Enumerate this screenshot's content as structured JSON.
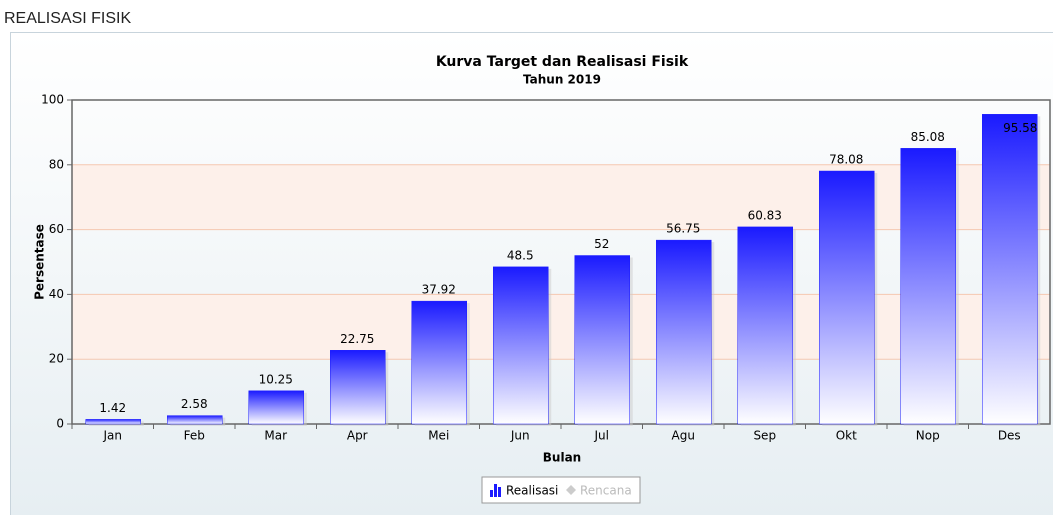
{
  "page_title": "REALISASI FISIK",
  "chart_data": {
    "type": "bar",
    "title": "Kurva Target dan Realisasi Fisik",
    "subtitle": "Tahun 2019",
    "x_label": "Bulan",
    "y_label": "Persentase",
    "categories": [
      "Jan",
      "Feb",
      "Mar",
      "Apr",
      "Mei",
      "Jun",
      "Jul",
      "Agu",
      "Sep",
      "Okt",
      "Nop",
      "Des"
    ],
    "series": [
      {
        "name": "Realisasi",
        "color": "#1a1aff",
        "values": [
          1.42,
          2.58,
          10.25,
          22.75,
          37.92,
          48.5,
          52,
          56.75,
          60.83,
          78.08,
          85.08,
          95.58
        ]
      }
    ],
    "hidden_series": [
      "Rencana"
    ],
    "ylim": [
      0,
      100
    ],
    "yticks": [
      0,
      20,
      40,
      60,
      80,
      100
    ],
    "grid": true,
    "legend": "bottom"
  }
}
